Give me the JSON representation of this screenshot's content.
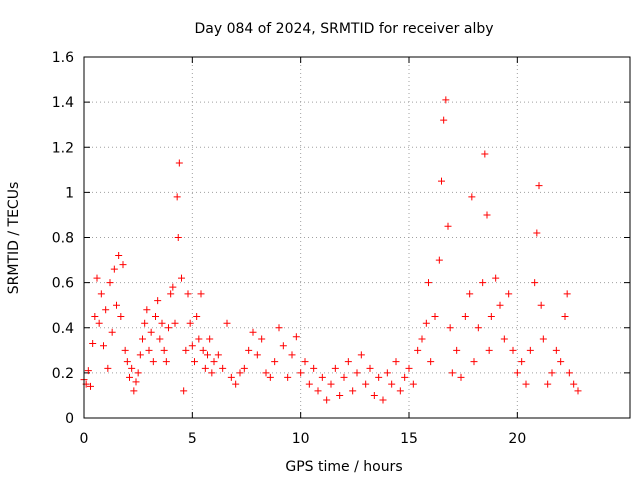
{
  "chart_data": {
    "type": "scatter",
    "title": "Day 084 of 2024, SRMTID for receiver alby",
    "xlabel": "GPS time / hours",
    "ylabel": "SRMTID / TECUs",
    "xlim": [
      0,
      25.2
    ],
    "ylim": [
      0,
      1.6
    ],
    "x_ticks": [
      0,
      5,
      10,
      15,
      20
    ],
    "x_tick_labels": [
      "0",
      "5",
      "10",
      "15",
      "20"
    ],
    "y_ticks": [
      0,
      0.2,
      0.4,
      0.6,
      0.8,
      1.0,
      1.2,
      1.4,
      1.6
    ],
    "y_tick_labels": [
      "0",
      "0.2",
      "0.4",
      "0.6",
      "0.8",
      "1",
      "1.2",
      "1.4",
      "1.6"
    ],
    "grid": true,
    "marker": "plus",
    "color": "#ff0000",
    "series": [
      {
        "name": "SRMTID",
        "points": [
          [
            0.0,
            0.17
          ],
          [
            0.1,
            0.15
          ],
          [
            0.2,
            0.21
          ],
          [
            0.3,
            0.14
          ],
          [
            0.4,
            0.33
          ],
          [
            0.5,
            0.45
          ],
          [
            0.6,
            0.62
          ],
          [
            0.7,
            0.42
          ],
          [
            0.8,
            0.55
          ],
          [
            0.9,
            0.32
          ],
          [
            1.0,
            0.48
          ],
          [
            1.1,
            0.22
          ],
          [
            1.2,
            0.6
          ],
          [
            1.3,
            0.38
          ],
          [
            1.4,
            0.66
          ],
          [
            1.5,
            0.5
          ],
          [
            1.6,
            0.72
          ],
          [
            1.7,
            0.45
          ],
          [
            1.8,
            0.68
          ],
          [
            1.9,
            0.3
          ],
          [
            2.0,
            0.25
          ],
          [
            2.1,
            0.18
          ],
          [
            2.2,
            0.22
          ],
          [
            2.3,
            0.12
          ],
          [
            2.4,
            0.16
          ],
          [
            2.5,
            0.2
          ],
          [
            2.6,
            0.28
          ],
          [
            2.7,
            0.35
          ],
          [
            2.8,
            0.42
          ],
          [
            2.9,
            0.48
          ],
          [
            3.0,
            0.3
          ],
          [
            3.1,
            0.38
          ],
          [
            3.2,
            0.25
          ],
          [
            3.3,
            0.45
          ],
          [
            3.4,
            0.52
          ],
          [
            3.5,
            0.35
          ],
          [
            3.6,
            0.42
          ],
          [
            3.7,
            0.3
          ],
          [
            3.8,
            0.25
          ],
          [
            3.9,
            0.4
          ],
          [
            4.0,
            0.55
          ],
          [
            4.1,
            0.58
          ],
          [
            4.2,
            0.42
          ],
          [
            4.3,
            0.98
          ],
          [
            4.35,
            0.8
          ],
          [
            4.4,
            1.13
          ],
          [
            4.5,
            0.62
          ],
          [
            4.6,
            0.12
          ],
          [
            4.7,
            0.3
          ],
          [
            4.8,
            0.55
          ],
          [
            4.9,
            0.42
          ],
          [
            5.0,
            0.32
          ],
          [
            5.1,
            0.25
          ],
          [
            5.2,
            0.45
          ],
          [
            5.3,
            0.35
          ],
          [
            5.4,
            0.55
          ],
          [
            5.5,
            0.3
          ],
          [
            5.6,
            0.22
          ],
          [
            5.7,
            0.28
          ],
          [
            5.8,
            0.35
          ],
          [
            5.9,
            0.2
          ],
          [
            6.0,
            0.25
          ],
          [
            6.2,
            0.28
          ],
          [
            6.4,
            0.22
          ],
          [
            6.6,
            0.42
          ],
          [
            6.8,
            0.18
          ],
          [
            7.0,
            0.15
          ],
          [
            7.2,
            0.2
          ],
          [
            7.4,
            0.22
          ],
          [
            7.6,
            0.3
          ],
          [
            7.8,
            0.38
          ],
          [
            8.0,
            0.28
          ],
          [
            8.2,
            0.35
          ],
          [
            8.4,
            0.2
          ],
          [
            8.6,
            0.18
          ],
          [
            8.8,
            0.25
          ],
          [
            9.0,
            0.4
          ],
          [
            9.2,
            0.32
          ],
          [
            9.4,
            0.18
          ],
          [
            9.6,
            0.28
          ],
          [
            9.8,
            0.36
          ],
          [
            10.0,
            0.2
          ],
          [
            10.2,
            0.25
          ],
          [
            10.4,
            0.15
          ],
          [
            10.6,
            0.22
          ],
          [
            10.8,
            0.12
          ],
          [
            11.0,
            0.18
          ],
          [
            11.2,
            0.08
          ],
          [
            11.4,
            0.15
          ],
          [
            11.6,
            0.22
          ],
          [
            11.8,
            0.1
          ],
          [
            12.0,
            0.18
          ],
          [
            12.2,
            0.25
          ],
          [
            12.4,
            0.12
          ],
          [
            12.6,
            0.2
          ],
          [
            12.8,
            0.28
          ],
          [
            13.0,
            0.15
          ],
          [
            13.2,
            0.22
          ],
          [
            13.4,
            0.1
          ],
          [
            13.6,
            0.18
          ],
          [
            13.8,
            0.08
          ],
          [
            14.0,
            0.2
          ],
          [
            14.2,
            0.15
          ],
          [
            14.4,
            0.25
          ],
          [
            14.6,
            0.12
          ],
          [
            14.8,
            0.18
          ],
          [
            15.0,
            0.22
          ],
          [
            15.2,
            0.15
          ],
          [
            15.4,
            0.3
          ],
          [
            15.6,
            0.35
          ],
          [
            15.8,
            0.42
          ],
          [
            15.9,
            0.6
          ],
          [
            16.0,
            0.25
          ],
          [
            16.2,
            0.45
          ],
          [
            16.4,
            0.7
          ],
          [
            16.5,
            1.05
          ],
          [
            16.6,
            1.32
          ],
          [
            16.7,
            1.41
          ],
          [
            16.8,
            0.85
          ],
          [
            16.9,
            0.4
          ],
          [
            17.0,
            0.2
          ],
          [
            17.2,
            0.3
          ],
          [
            17.4,
            0.18
          ],
          [
            17.6,
            0.45
          ],
          [
            17.8,
            0.55
          ],
          [
            17.9,
            0.98
          ],
          [
            18.0,
            0.25
          ],
          [
            18.2,
            0.4
          ],
          [
            18.4,
            0.6
          ],
          [
            18.5,
            1.17
          ],
          [
            18.6,
            0.9
          ],
          [
            18.7,
            0.3
          ],
          [
            18.8,
            0.45
          ],
          [
            19.0,
            0.62
          ],
          [
            19.2,
            0.5
          ],
          [
            19.4,
            0.35
          ],
          [
            19.6,
            0.55
          ],
          [
            19.8,
            0.3
          ],
          [
            20.0,
            0.2
          ],
          [
            20.2,
            0.25
          ],
          [
            20.4,
            0.15
          ],
          [
            20.6,
            0.3
          ],
          [
            20.8,
            0.6
          ],
          [
            20.9,
            0.82
          ],
          [
            21.0,
            1.03
          ],
          [
            21.1,
            0.5
          ],
          [
            21.2,
            0.35
          ],
          [
            21.4,
            0.15
          ],
          [
            21.6,
            0.2
          ],
          [
            21.8,
            0.3
          ],
          [
            22.0,
            0.25
          ],
          [
            22.2,
            0.45
          ],
          [
            22.3,
            0.55
          ],
          [
            22.4,
            0.2
          ],
          [
            22.6,
            0.15
          ],
          [
            22.8,
            0.12
          ]
        ]
      }
    ]
  }
}
